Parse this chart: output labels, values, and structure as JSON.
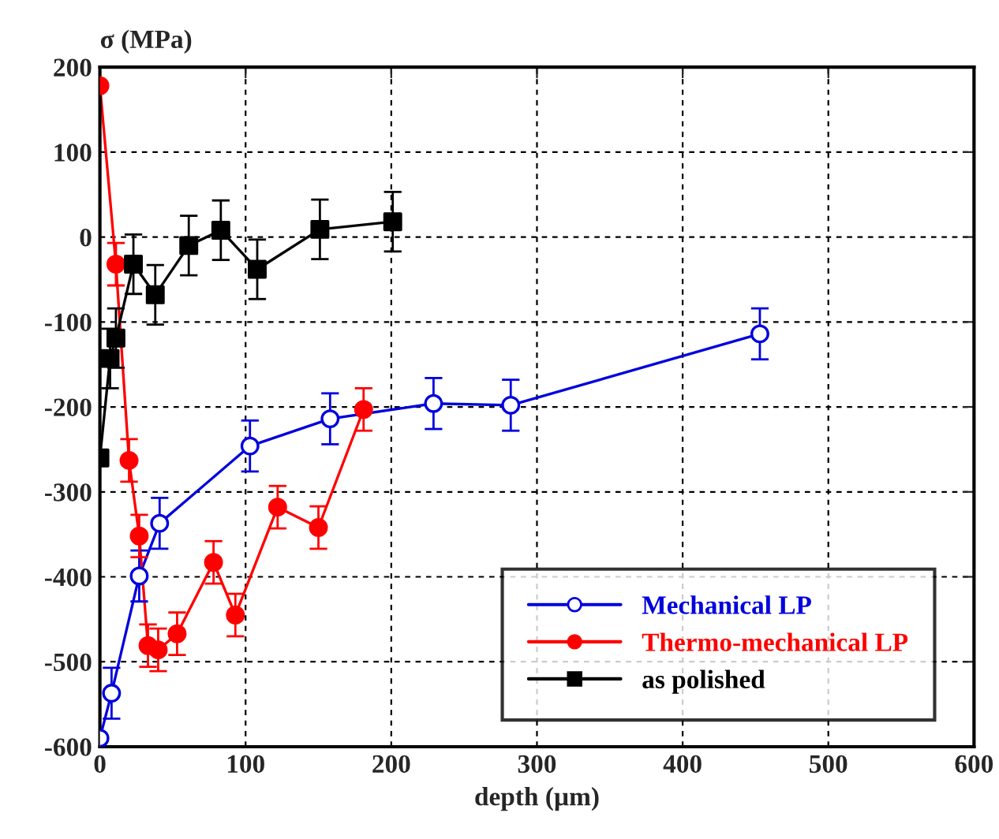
{
  "chart_data": {
    "type": "line",
    "xlabel": "depth (µm)",
    "ylabel": "σ (MPa)",
    "xlim": [
      0,
      600
    ],
    "ylim": [
      -600,
      200
    ],
    "xticks": [
      0,
      100,
      200,
      300,
      400,
      500,
      600
    ],
    "yticks": [
      -600,
      -500,
      -400,
      -300,
      -200,
      -100,
      0,
      100,
      200
    ],
    "grid": true,
    "legend": "bottom right",
    "line_style": "solid",
    "series": [
      {
        "name": "Mechanical LP",
        "color": "#0000dd",
        "marker": "circle",
        "x": [
          0,
          8,
          27,
          41,
          103,
          158,
          229,
          282,
          453
        ],
        "values": [
          -590,
          -537,
          -399,
          -337,
          -246,
          -214,
          -196,
          -198,
          -114
        ],
        "errors": [
          null,
          30,
          30,
          30,
          30,
          30,
          30,
          30,
          30
        ]
      },
      {
        "name": "Thermo-mechanical LP",
        "color": "#ff0000",
        "marker": "circle",
        "x": [
          0,
          11,
          20,
          27,
          33,
          40,
          53,
          78,
          93,
          122,
          150,
          181
        ],
        "values": [
          178,
          -32,
          -263,
          -352,
          -481,
          -486,
          -467,
          -383,
          -445,
          -318,
          -342,
          -203
        ],
        "errors": [
          null,
          25,
          25,
          25,
          25,
          25,
          25,
          25,
          25,
          25,
          25,
          25
        ]
      },
      {
        "name": "as polished",
        "color": "#000000",
        "marker": "square",
        "x": [
          0,
          7,
          11,
          23,
          38,
          61,
          83,
          108,
          151,
          201
        ],
        "values": [
          -260,
          -143,
          -119,
          -32,
          -68,
          -10,
          8,
          -38,
          9,
          18
        ],
        "errors": [
          null,
          35,
          35,
          35,
          35,
          35,
          35,
          35,
          35,
          35
        ]
      }
    ]
  }
}
